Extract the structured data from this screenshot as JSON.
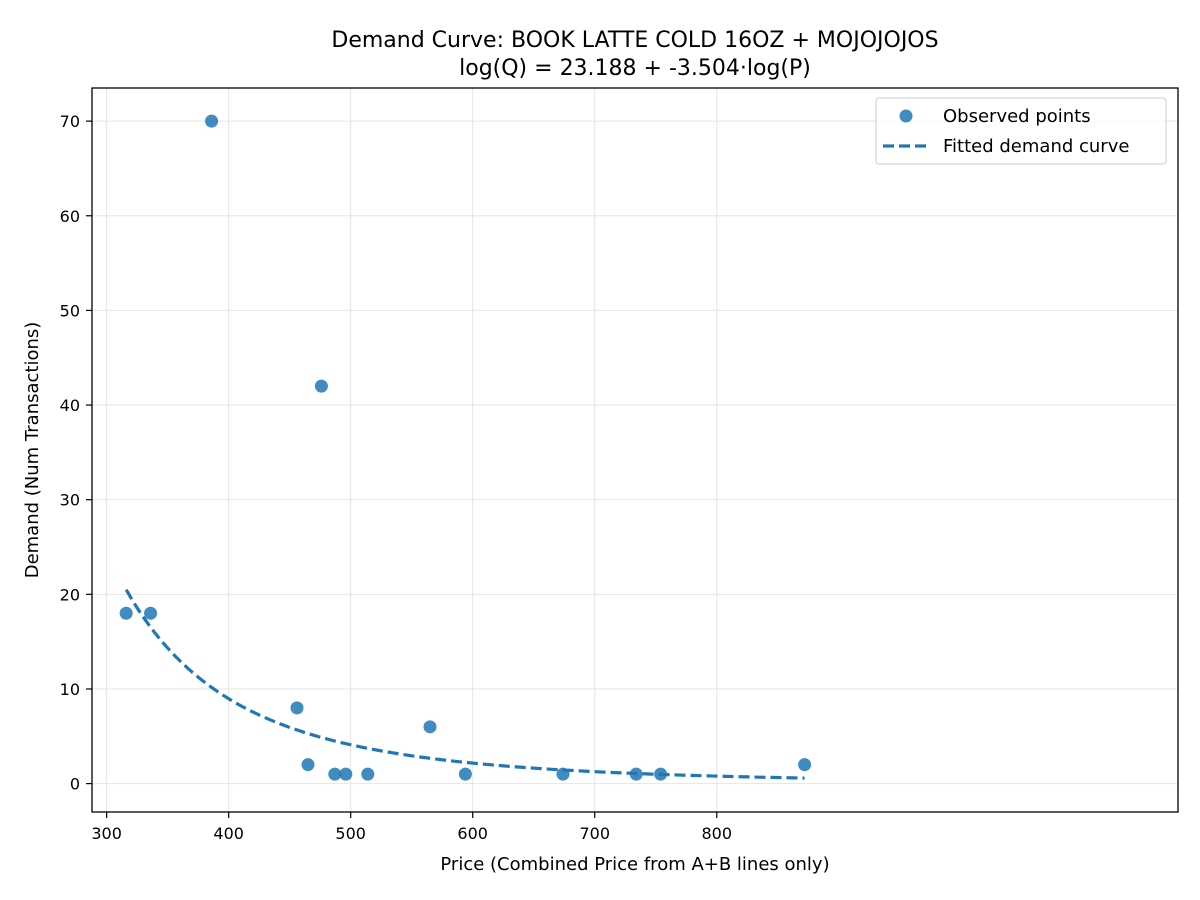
{
  "chart_data": {
    "type": "scatter",
    "title": "Demand Curve: BOOK LATTE COLD 16OZ + MOJOJOJOS",
    "subtitle": "log(Q) = 23.188 + -3.504·log(P)",
    "xlabel": "Price (Combined Price from A+B lines only)",
    "ylabel": "Demand (Num Transactions)",
    "xlim": [
      288,
      1178
    ],
    "ylim": [
      -3,
      73.5
    ],
    "xticks": [
      300,
      400,
      500,
      600,
      700,
      800
    ],
    "yticks": [
      0,
      10,
      20,
      30,
      40,
      50,
      60,
      70
    ],
    "grid": true,
    "legend_position": "top-right",
    "colors": {
      "points": "#1f77b4",
      "curve": "#1f77b4",
      "grid": "#e5e5e5",
      "axis": "#000000"
    },
    "series": [
      {
        "name": "Observed points",
        "kind": "scatter",
        "points": [
          {
            "x": 316,
            "y": 18
          },
          {
            "x": 336,
            "y": 18
          },
          {
            "x": 386,
            "y": 70
          },
          {
            "x": 456,
            "y": 8
          },
          {
            "x": 465,
            "y": 2
          },
          {
            "x": 476,
            "y": 42
          },
          {
            "x": 487,
            "y": 1
          },
          {
            "x": 496,
            "y": 1
          },
          {
            "x": 514,
            "y": 1
          },
          {
            "x": 565,
            "y": 6
          },
          {
            "x": 594,
            "y": 1
          },
          {
            "x": 674,
            "y": 1
          },
          {
            "x": 734,
            "y": 1
          },
          {
            "x": 754,
            "y": 1
          },
          {
            "x": 872,
            "y": 2
          }
        ]
      },
      {
        "name": "Fitted demand curve",
        "kind": "line",
        "style": "dashed",
        "intercept": 23.188,
        "slope": -3.504,
        "x_range": [
          316,
          872
        ]
      }
    ]
  }
}
